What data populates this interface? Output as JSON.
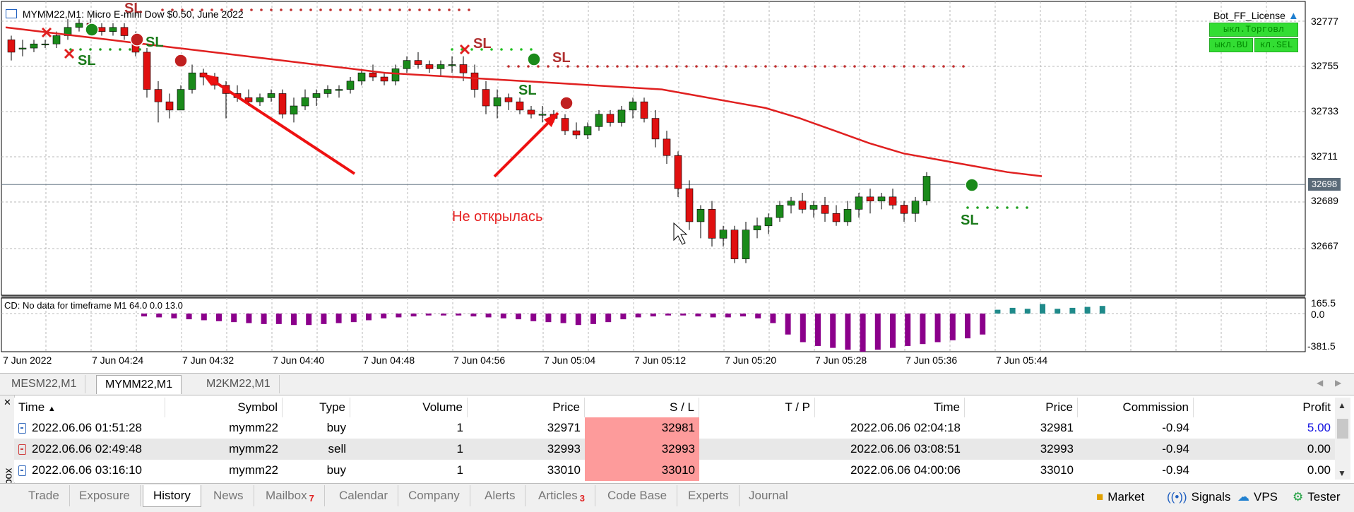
{
  "chart": {
    "header": "MYMM22,M1: Micro E-mini Dow $0.50, June 2022",
    "subwindow_header": "CD: No data for timeframe M1 64.0 0.0 13.0",
    "annotation": "Не открылась",
    "current_price": "32698",
    "license_label": "Bot_FF_License",
    "bot_buttons": [
      "ыкл.Торговл",
      "ыкл.BU",
      "кл.SEL"
    ],
    "price_axis": [
      "32777",
      "32755",
      "32733",
      "32711",
      "32689",
      "32667"
    ],
    "sub_axis": [
      "165.5",
      "0.0",
      "-381.5"
    ],
    "time_axis": [
      "7 Jun 2022",
      "7 Jun 04:24",
      "7 Jun 04:32",
      "7 Jun 04:40",
      "7 Jun 04:48",
      "7 Jun 04:56",
      "7 Jun 05:04",
      "7 Jun 05:12",
      "7 Jun 05:20",
      "7 Jun 05:28",
      "7 Jun 05:36",
      "7 Jun 05:44"
    ],
    "sl_marker": "SL",
    "colors": {
      "bull": "#1a8a1a",
      "bear": "#e01010",
      "ma": "#e02020",
      "hist_neg": "#8b008b",
      "hist_pos": "#1f8a8a"
    }
  },
  "chart_data": {
    "type": "candlestick",
    "symbol": "MYMM22",
    "timeframe": "M1",
    "ylim": [
      32645,
      32782
    ],
    "current_price": 32698,
    "candles": [
      [
        32768,
        32770,
        32758,
        32762
      ],
      [
        32764,
        32768,
        32760,
        32764
      ],
      [
        32764,
        32768,
        32762,
        32766
      ],
      [
        32766,
        32768,
        32764,
        32766
      ],
      [
        32766,
        32772,
        32764,
        32770
      ],
      [
        32770,
        32778,
        32768,
        32774
      ],
      [
        32774,
        32778,
        32772,
        32776
      ],
      [
        32776,
        32778,
        32772,
        32774
      ],
      [
        32774,
        32776,
        32770,
        32772
      ],
      [
        32772,
        32776,
        32770,
        32774
      ],
      [
        32774,
        32776,
        32768,
        32770
      ],
      [
        32770,
        32772,
        32760,
        32762
      ],
      [
        32762,
        32764,
        32740,
        32744
      ],
      [
        32744,
        32748,
        32728,
        32738
      ],
      [
        32738,
        32742,
        32730,
        32734
      ],
      [
        32734,
        32746,
        32734,
        32744
      ],
      [
        32744,
        32756,
        32742,
        32752
      ],
      [
        32752,
        32754,
        32746,
        32750
      ],
      [
        32750,
        32752,
        32744,
        32746
      ],
      [
        32746,
        32748,
        32730,
        32742
      ],
      [
        32742,
        32746,
        32738,
        32740
      ],
      [
        32740,
        32744,
        32736,
        32738
      ],
      [
        32738,
        32742,
        32736,
        32740
      ],
      [
        32740,
        32744,
        32738,
        32742
      ],
      [
        32742,
        32744,
        32730,
        32732
      ],
      [
        32732,
        32740,
        32728,
        32736
      ],
      [
        32736,
        32744,
        32734,
        32740
      ],
      [
        32740,
        32744,
        32736,
        32742
      ],
      [
        32742,
        32746,
        32740,
        32744
      ],
      [
        32744,
        32746,
        32740,
        32744
      ],
      [
        32744,
        32750,
        32742,
        32748
      ],
      [
        32748,
        32754,
        32746,
        32752
      ],
      [
        32752,
        32756,
        32748,
        32750
      ],
      [
        32750,
        32752,
        32746,
        32748
      ],
      [
        32748,
        32756,
        32746,
        32754
      ],
      [
        32754,
        32760,
        32752,
        32758
      ],
      [
        32758,
        32762,
        32754,
        32756
      ],
      [
        32756,
        32758,
        32752,
        32754
      ],
      [
        32754,
        32758,
        32750,
        32756
      ],
      [
        32756,
        32760,
        32752,
        32756
      ],
      [
        32756,
        32760,
        32748,
        32752
      ],
      [
        32752,
        32756,
        32740,
        32744
      ],
      [
        32744,
        32748,
        32732,
        32736
      ],
      [
        32736,
        32744,
        32730,
        32740
      ],
      [
        32740,
        32742,
        32734,
        32738
      ],
      [
        32738,
        32740,
        32732,
        32734
      ],
      [
        32734,
        32736,
        32730,
        32732
      ],
      [
        32732,
        32736,
        32728,
        32732
      ],
      [
        32732,
        32734,
        32728,
        32730
      ],
      [
        32730,
        32732,
        32722,
        32724
      ],
      [
        32724,
        32728,
        32720,
        32722
      ],
      [
        32722,
        32728,
        32720,
        32726
      ],
      [
        32726,
        32734,
        32724,
        32732
      ],
      [
        32732,
        32734,
        32726,
        32728
      ],
      [
        32728,
        32736,
        32726,
        32734
      ],
      [
        32734,
        32740,
        32730,
        32738
      ],
      [
        32738,
        32740,
        32728,
        32730
      ],
      [
        32730,
        32734,
        32716,
        32720
      ],
      [
        32720,
        32724,
        32708,
        32712
      ],
      [
        32712,
        32714,
        32692,
        32696
      ],
      [
        32696,
        32700,
        32676,
        32680
      ],
      [
        32680,
        32688,
        32672,
        32686
      ],
      [
        32686,
        32690,
        32668,
        32672
      ],
      [
        32672,
        32678,
        32668,
        32676
      ],
      [
        32676,
        32678,
        32660,
        32662
      ],
      [
        32662,
        32680,
        32660,
        32676
      ],
      [
        32676,
        32682,
        32672,
        32678
      ],
      [
        32678,
        32684,
        32674,
        32682
      ],
      [
        32682,
        32690,
        32680,
        32688
      ],
      [
        32688,
        32692,
        32684,
        32690
      ],
      [
        32690,
        32694,
        32684,
        32686
      ],
      [
        32686,
        32690,
        32682,
        32688
      ],
      [
        32688,
        32692,
        32680,
        32684
      ],
      [
        32684,
        32688,
        32678,
        32680
      ],
      [
        32680,
        32690,
        32678,
        32686
      ],
      [
        32686,
        32694,
        32682,
        32692
      ],
      [
        32692,
        32696,
        32684,
        32690
      ],
      [
        32690,
        32694,
        32686,
        32692
      ],
      [
        32692,
        32696,
        32686,
        32688
      ],
      [
        32688,
        32690,
        32680,
        32684
      ],
      [
        32684,
        32692,
        32680,
        32690
      ],
      [
        32690,
        32704,
        32688,
        32702
      ]
    ],
    "ma": [
      32774,
      32772,
      32770,
      32768,
      32766,
      32764,
      32762,
      32760,
      32758,
      32756,
      32754,
      32752,
      32751,
      32750,
      32749,
      32748,
      32747,
      32746,
      32745,
      32744,
      32741,
      32738,
      32735,
      32730,
      32724,
      32718,
      32713,
      32710,
      32707,
      32704,
      32702
    ],
    "histogram": [
      -3,
      -4,
      -5,
      -6,
      -7,
      -8,
      -9,
      -10,
      -11,
      -11,
      -12,
      -12,
      -11,
      -10,
      -9,
      -7,
      -5,
      -4,
      -3,
      -2,
      -2,
      -2,
      -3,
      -4,
      -5,
      -6,
      -8,
      -9,
      -10,
      -12,
      -11,
      -9,
      -6,
      -4,
      -3,
      -2,
      -2,
      -3,
      -4,
      -4,
      -3,
      -5,
      -10,
      -22,
      -30,
      -34,
      -36,
      -38,
      -40,
      -38,
      -36,
      -34,
      -32,
      -30,
      -28,
      -26,
      -22,
      4,
      6,
      5,
      10,
      5,
      6,
      7,
      8
    ]
  },
  "symbol_tabs": [
    "MESM22,M1",
    "MYMM22,M1",
    "M2KM22,M1"
  ],
  "table": {
    "headers": [
      "Time",
      "Symbol",
      "Type",
      "Volume",
      "Price",
      "S / L",
      "T / P",
      "Time",
      "Price",
      "Commission",
      "Profit"
    ],
    "rows": [
      {
        "type_icon": "buy",
        "time": "2022.06.06 01:51:28",
        "symbol": "mymm22",
        "type": "buy",
        "volume": "1",
        "price": "32971",
        "sl": "32981",
        "tp": "",
        "close_time": "2022.06.06 02:04:18",
        "close_price": "32981",
        "commission": "-0.94",
        "profit": "5.00"
      },
      {
        "type_icon": "sell",
        "time": "2022.06.06 02:49:48",
        "symbol": "mymm22",
        "type": "sell",
        "volume": "1",
        "price": "32993",
        "sl": "32993",
        "tp": "",
        "close_time": "2022.06.06 03:08:51",
        "close_price": "32993",
        "commission": "-0.94",
        "profit": "0.00"
      },
      {
        "type_icon": "buy",
        "time": "2022.06.06 03:16:10",
        "symbol": "mymm22",
        "type": "buy",
        "volume": "1",
        "price": "33010",
        "sl": "33010",
        "tp": "",
        "close_time": "2022.06.06 04:00:06",
        "close_price": "33010",
        "commission": "-0.94",
        "profit": "0.00"
      }
    ]
  },
  "toolbox_label": "Toolbox",
  "bottom_tabs": [
    {
      "label": "Trade",
      "badge": ""
    },
    {
      "label": "Exposure",
      "badge": ""
    },
    {
      "label": "History",
      "badge": ""
    },
    {
      "label": "News",
      "badge": ""
    },
    {
      "label": "Mailbox",
      "badge": "7"
    },
    {
      "label": "Calendar",
      "badge": ""
    },
    {
      "label": "Company",
      "badge": ""
    },
    {
      "label": "Alerts",
      "badge": ""
    },
    {
      "label": "Articles",
      "badge": "3"
    },
    {
      "label": "Code Base",
      "badge": ""
    },
    {
      "label": "Experts",
      "badge": ""
    },
    {
      "label": "Journal",
      "badge": ""
    }
  ],
  "right_tabs": [
    {
      "label": "Market",
      "icon": "market-bag-icon"
    },
    {
      "label": "Signals",
      "icon": "signals-icon"
    },
    {
      "label": "VPS",
      "icon": "cloud-icon"
    },
    {
      "label": "Tester",
      "icon": "tester-icon"
    }
  ]
}
